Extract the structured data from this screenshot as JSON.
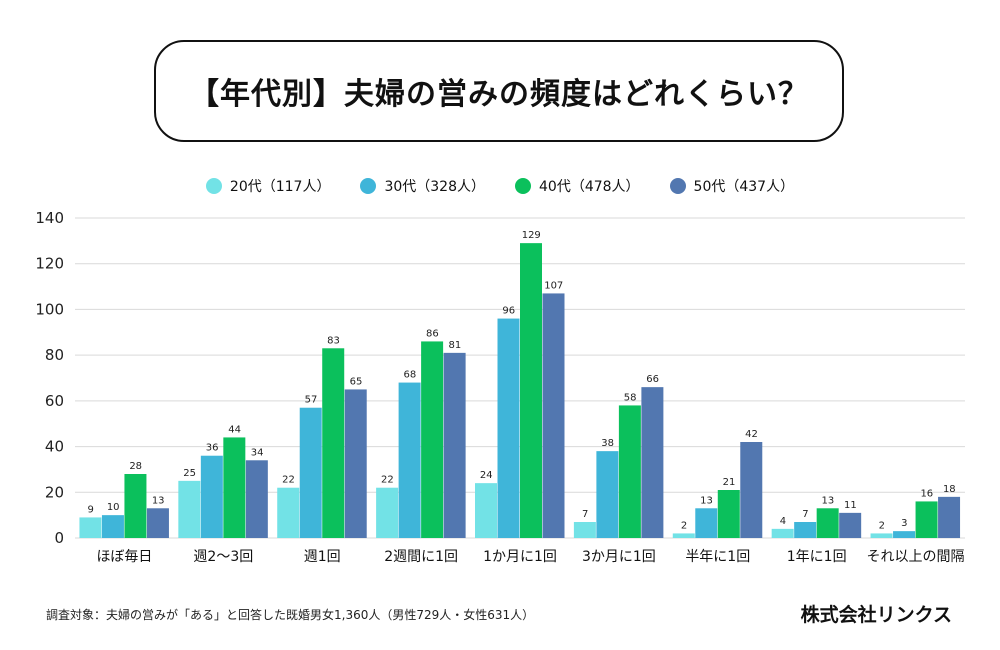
{
  "title": "【年代別】夫婦の営みの頻度はどれくらい？",
  "footnote": "調査対象：夫婦の営みが「ある」と回答した既婚男女1,360人（男性729人・女性631人）",
  "company": "株式会社リンクス",
  "chart_data": {
    "type": "bar",
    "categories": [
      "ほぼ毎日",
      "週2～3回",
      "週1回",
      "2週間に1回",
      "1か月に1回",
      "3か月に1回",
      "半年に1回",
      "1年に1回",
      "それ以上の間隔"
    ],
    "series": [
      {
        "name": "20代（117人）",
        "color": "#72e2e6",
        "values": [
          9,
          25,
          22,
          22,
          24,
          7,
          2,
          4,
          2
        ]
      },
      {
        "name": "30代（328人）",
        "color": "#3fb5d9",
        "values": [
          10,
          36,
          57,
          68,
          96,
          38,
          13,
          7,
          3
        ]
      },
      {
        "name": "40代（478人）",
        "color": "#0bc05c",
        "values": [
          28,
          44,
          83,
          86,
          129,
          58,
          21,
          13,
          16
        ]
      },
      {
        "name": "50代（437人）",
        "color": "#5277b0",
        "values": [
          13,
          34,
          65,
          81,
          107,
          66,
          42,
          11,
          18
        ]
      }
    ],
    "yticks": [
      0,
      20,
      40,
      60,
      80,
      100,
      120,
      140
    ],
    "ylim": [
      0,
      140
    ],
    "grid": true,
    "legend_position": "top"
  }
}
